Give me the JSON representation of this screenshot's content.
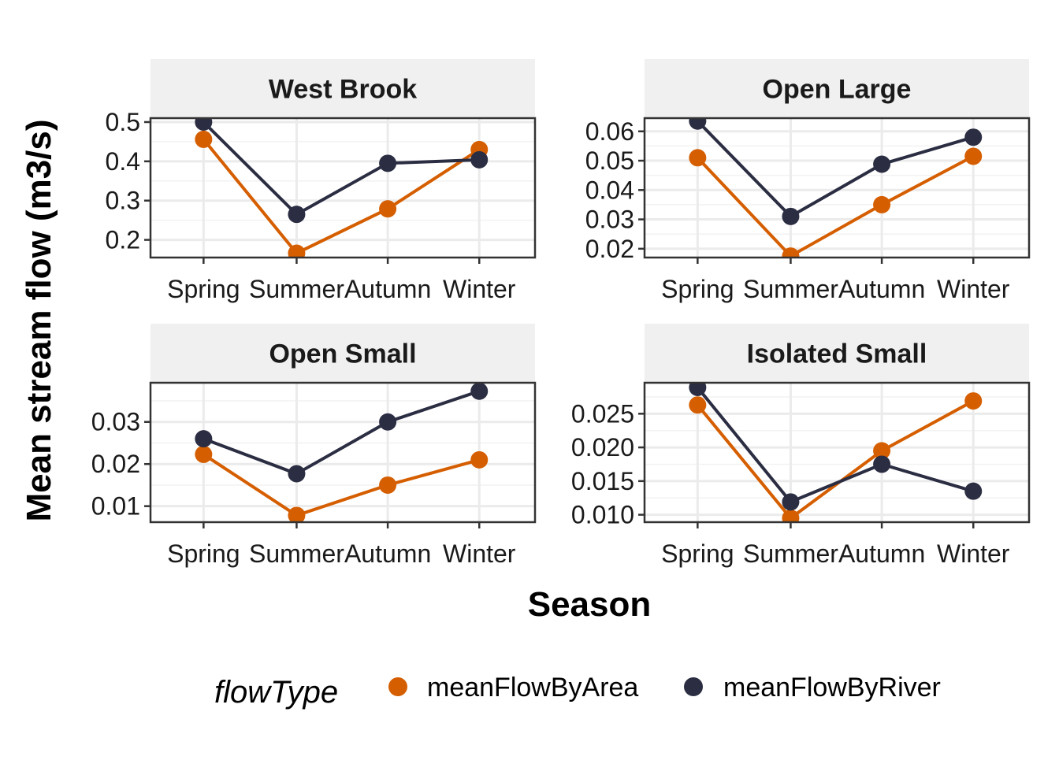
{
  "chart_data": {
    "type": "line",
    "xlabel": "Season",
    "ylabel": "Mean stream flow (m3/s)",
    "categories": [
      "Spring",
      "Summer",
      "Autumn",
      "Winter"
    ],
    "legend": {
      "title": "flowType",
      "placement": "bottom",
      "entries": [
        {
          "name": "meanFlowByArea",
          "color": "#D55E00"
        },
        {
          "name": "meanFlowByRiver",
          "color": "#2B2D42"
        }
      ]
    },
    "grid": true,
    "panels": [
      {
        "title": "West Brook",
        "ylim": [
          0.155,
          0.51
        ],
        "yticks": [
          0.2,
          0.3,
          0.4,
          0.5
        ],
        "ytick_labels": [
          "0.2",
          "0.3",
          "0.4",
          "0.5"
        ],
        "series": [
          {
            "name": "meanFlowByArea",
            "values": [
              0.456,
              0.166,
              0.279,
              0.43
            ]
          },
          {
            "name": "meanFlowByRiver",
            "values": [
              0.5,
              0.265,
              0.395,
              0.404
            ]
          }
        ]
      },
      {
        "title": "Open Large",
        "ylim": [
          0.017,
          0.0645
        ],
        "yticks": [
          0.02,
          0.03,
          0.04,
          0.05,
          0.06
        ],
        "ytick_labels": [
          "0.02",
          "0.03",
          "0.04",
          "0.05",
          "0.06"
        ],
        "series": [
          {
            "name": "meanFlowByArea",
            "values": [
              0.051,
              0.0175,
              0.035,
              0.0515
            ]
          },
          {
            "name": "meanFlowByRiver",
            "values": [
              0.0635,
              0.031,
              0.0488,
              0.058
            ]
          }
        ]
      },
      {
        "title": "Open Small",
        "ylim": [
          0.0062,
          0.0393
        ],
        "yticks": [
          0.01,
          0.02,
          0.03
        ],
        "ytick_labels": [
          "0.01",
          "0.02",
          "0.03"
        ],
        "series": [
          {
            "name": "meanFlowByArea",
            "values": [
              0.0223,
              0.0078,
              0.015,
              0.021
            ]
          },
          {
            "name": "meanFlowByRiver",
            "values": [
              0.026,
              0.0177,
              0.03,
              0.0373
            ]
          }
        ]
      },
      {
        "title": "Isolated Small",
        "ylim": [
          0.0089,
          0.0296
        ],
        "yticks": [
          0.01,
          0.015,
          0.02,
          0.025
        ],
        "ytick_labels": [
          "0.010",
          "0.015",
          "0.020",
          "0.025"
        ],
        "series": [
          {
            "name": "meanFlowByArea",
            "values": [
              0.0263,
              0.0095,
              0.0195,
              0.0269
            ]
          },
          {
            "name": "meanFlowByRiver",
            "values": [
              0.0289,
              0.0119,
              0.0175,
              0.0135
            ]
          }
        ]
      }
    ]
  }
}
